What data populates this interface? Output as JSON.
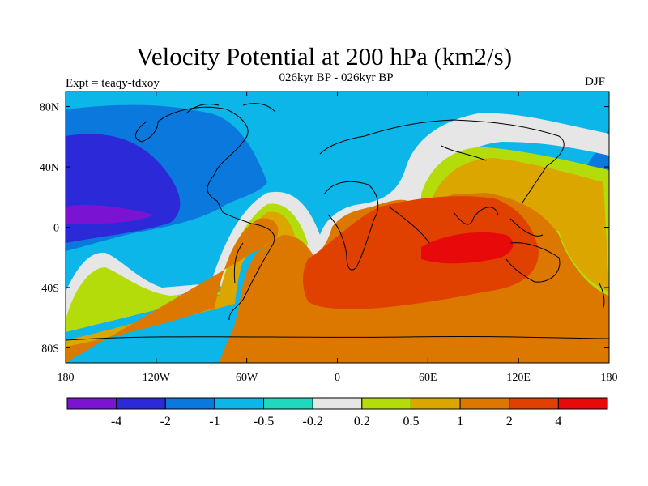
{
  "title": "Velocity Potential at 200 hPa (km2/s)",
  "subtitle": "026kyr BP - 026kyr BP",
  "expt_label": "Expt = teaqy-tdxoy",
  "season": "DJF",
  "map": {
    "projection": "cylindrical equidistant",
    "lon_range": [
      -180,
      180
    ],
    "lat_range": [
      -90,
      90
    ],
    "lon_ticks": [
      "180",
      "120W",
      "60W",
      "0",
      "60E",
      "120E",
      "180"
    ],
    "lat_ticks": [
      "80N",
      "40N",
      "0",
      "40S",
      "80S"
    ],
    "coastlines": true
  },
  "colorbar": {
    "orientation": "horizontal",
    "labels": [
      "-4",
      "-2",
      "-1",
      "-0.5",
      "-0.2",
      "0.2",
      "0.5",
      "1",
      "2",
      "4"
    ],
    "colors": [
      "#7a14d2",
      "#2c2ad8",
      "#0a78dc",
      "#0cb6e8",
      "#20d8be",
      "#e6e6e6",
      "#b4dc0a",
      "#dca600",
      "#dc7800",
      "#e04000",
      "#e80a0a"
    ]
  }
}
